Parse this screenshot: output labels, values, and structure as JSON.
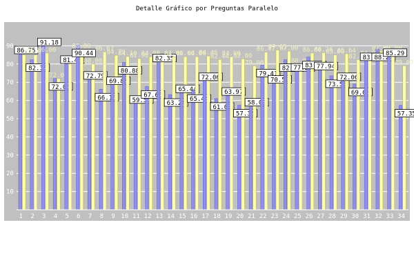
{
  "chart_data": {
    "type": "bar",
    "title": "Detalle Gráfico por Preguntas Paralelo",
    "xlabel": "",
    "ylabel": "",
    "ylim": [
      0,
      100
    ],
    "yticks": [
      10,
      20,
      30,
      40,
      50,
      60,
      70,
      80,
      90
    ],
    "grid": true,
    "categories": [
      "1",
      "2",
      "3",
      "4",
      "5",
      "6",
      "7",
      "8",
      "9",
      "10",
      "11",
      "12",
      "13",
      "14",
      "15",
      "16",
      "17",
      "18",
      "19",
      "20",
      "21",
      "22",
      "23",
      "24",
      "25",
      "26",
      "27",
      "28",
      "29",
      "30",
      "31",
      "32",
      "33",
      "34"
    ],
    "series": [
      {
        "values": [
          86.75,
          82.35,
          91.18,
          72.06,
          81.48,
          90.44,
          72.79,
          66.18,
          69.85,
          80.88,
          59.56,
          67.65,
          82.35,
          63.24,
          65.44,
          65.44,
          72.06,
          61.03,
          63.97,
          57.35,
          58.09,
          79.41,
          70.59,
          82.35,
          77.21,
          83.82,
          77.94,
          73.53,
          72.06,
          69.0,
          83.0,
          88.24,
          85.29,
          57.35
        ]
      },
      {
        "values": [
          85.0,
          85.0,
          86.0,
          72.0,
          81.48,
          88.0,
          80.0,
          86.67,
          84.79,
          84.1,
          82.96,
          84.0,
          82.72,
          84.0,
          84.0,
          84.0,
          84.4,
          82.44,
          84.0,
          82.8,
          79.0,
          86.47,
          87.65,
          87.0,
          80.0,
          86.0,
          86.26,
          85.0,
          85.64,
          82.37,
          84.0,
          87.0,
          87.0,
          79.07
        ]
      }
    ],
    "colors": {
      "series1": "#8f8ff0",
      "series2": "#ffffa8",
      "plot_bg": "#c0c0c0",
      "grid": "#ffffff",
      "label_box": "#ffffff"
    }
  }
}
